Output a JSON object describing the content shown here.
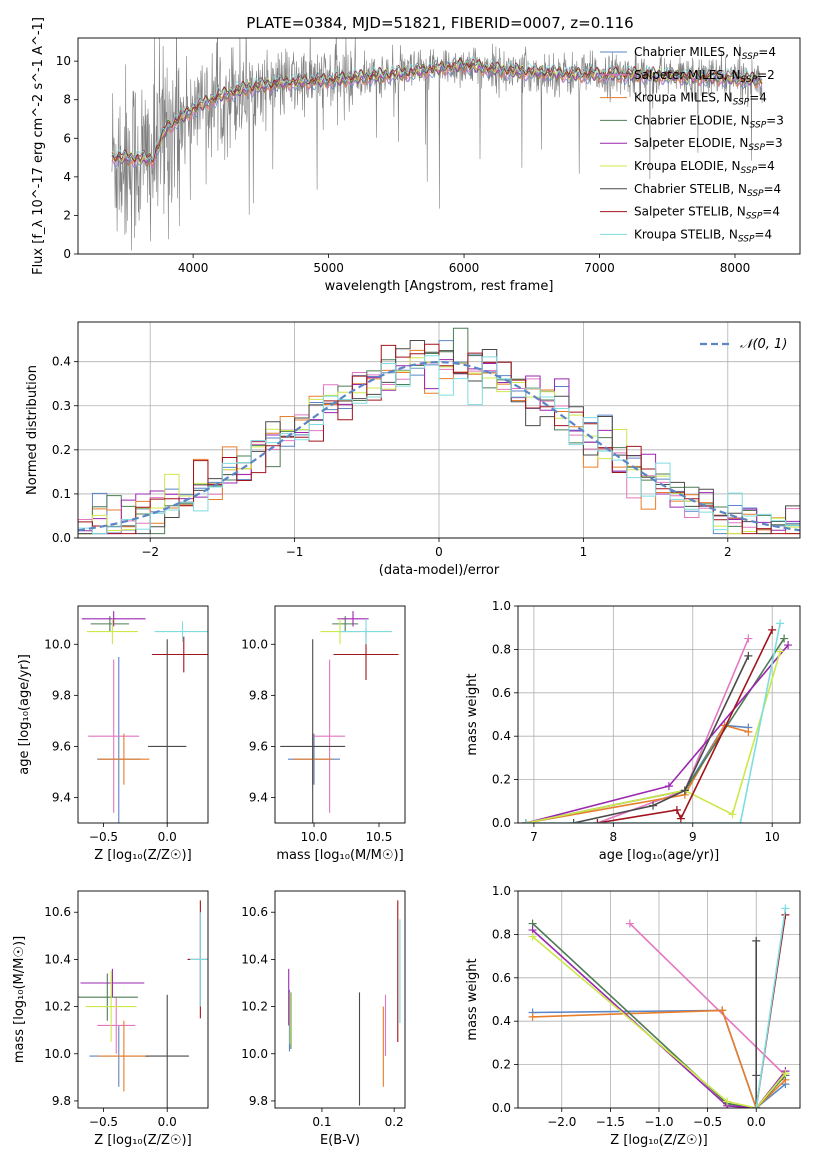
{
  "title": "PLATE=0384, MJD=51821, FIBERID=0007, z=0.116",
  "colors": {
    "Chabrier MILES": "#5b86c6",
    "Salpeter MILES": "#e377c2",
    "Kroupa MILES": "#e87d2a",
    "Chabrier ELODIE": "#4e7d55",
    "Salpeter ELODIE": "#9b27b0",
    "Kroupa ELODIE": "#cde84a",
    "Chabrier STELIB": "#4a4a4a",
    "Salpeter STELIB": "#a0141c",
    "Kroupa STELIB": "#7fdde0"
  },
  "chart_data": [
    {
      "id": "spectrum",
      "type": "line",
      "xlabel": "wavelength [Angstrom, rest frame]",
      "ylabel": "Flux [f_λ 10^-17 erg cm^-2 s^-1 A^-1]",
      "xlim": [
        3150,
        8480
      ],
      "ylim": [
        0,
        11.2
      ],
      "xticks": [
        4000,
        5000,
        6000,
        7000,
        8000
      ],
      "yticks": [
        0,
        2,
        4,
        6,
        8,
        10
      ],
      "legend_position": "top-right",
      "data": {
        "x_range": [
          3400,
          8200
        ],
        "continuum": [
          [
            3400,
            5.0
          ],
          [
            3700,
            4.9
          ],
          [
            3800,
            6.5
          ],
          [
            4000,
            7.5
          ],
          [
            4200,
            8.2
          ],
          [
            4400,
            8.6
          ],
          [
            4700,
            8.9
          ],
          [
            5000,
            9.0
          ],
          [
            5300,
            9.2
          ],
          [
            5600,
            9.4
          ],
          [
            6000,
            9.8
          ],
          [
            6300,
            9.5
          ],
          [
            6600,
            9.4
          ],
          [
            6800,
            9.3
          ],
          [
            7000,
            9.3
          ],
          [
            7300,
            9.3
          ],
          [
            7600,
            9.2
          ],
          [
            8000,
            9.1
          ],
          [
            8200,
            9.0
          ]
        ],
        "observed_color": "#808080"
      },
      "series": [
        {
          "name": "Chabrier MILES",
          "label_parts": [
            "Chabrier MILES, N",
            "SSP",
            "=4"
          ],
          "color": "#5b86c6"
        },
        {
          "name": "Salpeter MILES",
          "label_parts": [
            "Salpeter MILES, N",
            "SSP",
            "=2"
          ],
          "color": "#e377c2"
        },
        {
          "name": "Kroupa MILES",
          "label_parts": [
            "Kroupa MILES, N",
            "SSP",
            "=4"
          ],
          "color": "#e87d2a"
        },
        {
          "name": "Chabrier ELODIE",
          "label_parts": [
            "Chabrier ELODIE, N",
            "SSP",
            "=3"
          ],
          "color": "#4e7d55"
        },
        {
          "name": "Salpeter ELODIE",
          "label_parts": [
            "Salpeter ELODIE, N",
            "SSP",
            "=3"
          ],
          "color": "#9b27b0"
        },
        {
          "name": "Kroupa ELODIE",
          "label_parts": [
            "Kroupa ELODIE, N",
            "SSP",
            "=4"
          ],
          "color": "#cde84a"
        },
        {
          "name": "Chabrier STELIB",
          "label_parts": [
            "Chabrier STELIB, N",
            "SSP",
            "=4"
          ],
          "color": "#4a4a4a"
        },
        {
          "name": "Salpeter STELIB",
          "label_parts": [
            "Salpeter STELIB, N",
            "SSP",
            "=4"
          ],
          "color": "#a0141c"
        },
        {
          "name": "Kroupa STELIB",
          "label_parts": [
            "Kroupa STELIB, N",
            "SSP",
            "=4"
          ],
          "color": "#7fdde0"
        }
      ]
    },
    {
      "id": "residuals",
      "type": "bar",
      "xlabel": "(data-model)/error",
      "ylabel": "Normed distribution",
      "xlim": [
        -2.5,
        2.5
      ],
      "ylim": [
        0,
        0.49
      ],
      "xticks": [
        -2,
        -1,
        0,
        1,
        2
      ],
      "yticks": [
        0.0,
        0.1,
        0.2,
        0.3,
        0.4
      ],
      "grid": true,
      "legend_position": "top-right",
      "legend_label": "𝒩(0, 1)",
      "gaussian_color": "#5b86c6",
      "bins": {
        "start": -2.5,
        "width": 0.1,
        "count": 50
      }
    },
    {
      "id": "age-vs-Z",
      "type": "errorbar",
      "xlabel": "Z [log₁₀(Z/Z☉)]",
      "ylabel": "age  [log₁₀(age/yr)]",
      "xlim": [
        -0.7,
        0.32
      ],
      "ylim": [
        9.3,
        10.15
      ],
      "xticks": [
        -0.5,
        0.0
      ],
      "yticks": [
        9.4,
        9.6,
        9.8,
        10.0
      ],
      "points": [
        {
          "series": "Chabrier MILES",
          "x": -0.38,
          "xerr": 0.17,
          "y": 9.55,
          "yerr": 0.4
        },
        {
          "series": "Salpeter MILES",
          "x": -0.42,
          "xerr": 0.2,
          "y": 9.64,
          "yerr": 0.3
        },
        {
          "series": "Kroupa MILES",
          "x": -0.34,
          "xerr": 0.2,
          "y": 9.55,
          "yerr": 0.1
        },
        {
          "series": "Chabrier ELODIE",
          "x": -0.45,
          "xerr": 0.15,
          "y": 10.08,
          "yerr": 0.03
        },
        {
          "series": "Salpeter ELODIE",
          "x": -0.42,
          "xerr": 0.25,
          "y": 10.1,
          "yerr": 0.03
        },
        {
          "series": "Kroupa ELODIE",
          "x": -0.43,
          "xerr": 0.2,
          "y": 10.05,
          "yerr": 0.05
        },
        {
          "series": "Chabrier STELIB",
          "x": 0.0,
          "xerr": 0.15,
          "y": 9.6,
          "yerr": 0.42
        },
        {
          "series": "Salpeter STELIB",
          "x": 0.13,
          "xerr": 0.25,
          "y": 9.96,
          "yerr": 0.07
        },
        {
          "series": "Kroupa STELIB",
          "x": 0.12,
          "xerr": 0.22,
          "y": 10.05,
          "yerr": 0.04
        }
      ]
    },
    {
      "id": "age-vs-mass",
      "type": "errorbar",
      "xlabel": "mass [log₁₀(M/M☉)]",
      "ylabel": "",
      "xlim": [
        9.7,
        10.7
      ],
      "ylim": [
        9.3,
        10.15
      ],
      "xticks": [
        10.0,
        10.5
      ],
      "yticks": [
        9.4,
        9.6,
        9.8,
        10.0
      ],
      "points": [
        {
          "series": "Chabrier MILES",
          "x": 10.0,
          "xerr": 0.2,
          "y": 9.55,
          "yerr": 0.1
        },
        {
          "series": "Salpeter MILES",
          "x": 10.12,
          "xerr": 0.12,
          "y": 9.64,
          "yerr": 0.3
        },
        {
          "series": "Kroupa MILES",
          "x": 9.99,
          "xerr": 0.15,
          "y": 9.55,
          "yerr": 0.1
        },
        {
          "series": "Chabrier ELODIE",
          "x": 10.24,
          "xerr": 0.1,
          "y": 10.08,
          "yerr": 0.03
        },
        {
          "series": "Salpeter ELODIE",
          "x": 10.3,
          "xerr": 0.12,
          "y": 10.1,
          "yerr": 0.03
        },
        {
          "series": "Kroupa ELODIE",
          "x": 10.2,
          "xerr": 0.15,
          "y": 10.05,
          "yerr": 0.05
        },
        {
          "series": "Chabrier STELIB",
          "x": 9.99,
          "xerr": 0.25,
          "y": 9.6,
          "yerr": 0.42
        },
        {
          "series": "Salpeter STELIB",
          "x": 10.4,
          "xerr": 0.25,
          "y": 9.96,
          "yerr": 0.1
        },
        {
          "series": "Kroupa STELIB",
          "x": 10.4,
          "xerr": 0.2,
          "y": 10.05,
          "yerr": 0.05
        }
      ]
    },
    {
      "id": "weights-vs-age",
      "type": "line",
      "xlabel": "age  [log₁₀(age/yr)]",
      "ylabel": "mass weight",
      "xlim": [
        6.8,
        10.35
      ],
      "ylim": [
        0,
        1.0
      ],
      "xticks": [
        7,
        8,
        9,
        10
      ],
      "yticks": [
        0.0,
        0.2,
        0.4,
        0.6,
        0.8,
        1.0
      ],
      "grid": true,
      "series": [
        {
          "name": "Chabrier MILES",
          "x": [
            6.9,
            8.9,
            9.4,
            9.7
          ],
          "y": [
            0.0,
            0.15,
            0.45,
            0.44
          ]
        },
        {
          "name": "Salpeter MILES",
          "x": [
            7.8,
            8.9,
            9.7
          ],
          "y": [
            0.0,
            0.15,
            0.85
          ]
        },
        {
          "name": "Kroupa MILES",
          "x": [
            6.9,
            8.9,
            9.4,
            9.7
          ],
          "y": [
            0.0,
            0.13,
            0.45,
            0.42
          ]
        },
        {
          "name": "Chabrier ELODIE",
          "x": [
            6.9,
            8.9,
            10.15
          ],
          "y": [
            0.0,
            0.15,
            0.85
          ]
        },
        {
          "name": "Salpeter ELODIE",
          "x": [
            6.9,
            8.7,
            10.2
          ],
          "y": [
            0.0,
            0.17,
            0.82
          ]
        },
        {
          "name": "Kroupa ELODIE",
          "x": [
            6.9,
            8.9,
            9.5,
            10.1
          ],
          "y": [
            0.0,
            0.15,
            0.04,
            0.79
          ]
        },
        {
          "name": "Chabrier STELIB",
          "x": [
            7.5,
            8.5,
            8.9,
            9.7
          ],
          "y": [
            0.0,
            0.08,
            0.15,
            0.77
          ]
        },
        {
          "name": "Salpeter STELIB",
          "x": [
            7.8,
            8.8,
            8.85,
            10.0
          ],
          "y": [
            0.0,
            0.06,
            0.02,
            0.89
          ]
        },
        {
          "name": "Kroupa STELIB",
          "x": [
            6.9,
            9.6,
            10.1
          ],
          "y": [
            0.0,
            0.0,
            0.92
          ]
        }
      ]
    },
    {
      "id": "mass-vs-Z",
      "type": "errorbar",
      "xlabel": "Z [log₁₀(Z/Z☉)]",
      "ylabel": "mass [log₁₀(M/M☉)]",
      "xlim": [
        -0.7,
        0.32
      ],
      "ylim": [
        9.77,
        10.69
      ],
      "xticks": [
        -0.5,
        0.0
      ],
      "yticks": [
        9.8,
        10.0,
        10.2,
        10.4,
        10.6
      ],
      "points": [
        {
          "series": "Chabrier MILES",
          "x": -0.38,
          "xerr": 0.23,
          "y": 9.99,
          "yerr": 0.13
        },
        {
          "series": "Salpeter MILES",
          "x": -0.4,
          "xerr": 0.15,
          "y": 10.12,
          "yerr": 0.12
        },
        {
          "series": "Kroupa MILES",
          "x": -0.34,
          "xerr": 0.2,
          "y": 9.99,
          "yerr": 0.15
        },
        {
          "series": "Chabrier ELODIE",
          "x": -0.47,
          "xerr": 0.24,
          "y": 10.24,
          "yerr": 0.1
        },
        {
          "series": "Salpeter ELODIE",
          "x": -0.43,
          "xerr": 0.25,
          "y": 10.3,
          "yerr": 0.06
        },
        {
          "series": "Kroupa ELODIE",
          "x": -0.44,
          "xerr": 0.2,
          "y": 10.2,
          "yerr": 0.15
        },
        {
          "series": "Chabrier STELIB",
          "x": 0.0,
          "xerr": 0.17,
          "y": 9.99,
          "yerr": 0.26
        },
        {
          "series": "Salpeter STELIB",
          "x": 0.26,
          "xerr": 0.1,
          "y": 10.4,
          "yerr": 0.25
        },
        {
          "series": "Kroupa STELIB",
          "x": 0.26,
          "xerr": 0.08,
          "y": 10.4,
          "yerr": 0.2
        }
      ]
    },
    {
      "id": "mass-vs-ebv",
      "type": "errorbar",
      "xlabel": "E(B-V)",
      "ylabel": "",
      "xlim": [
        0.035,
        0.215
      ],
      "ylim": [
        9.77,
        10.69
      ],
      "xticks": [
        0.1,
        0.2
      ],
      "yticks": [
        9.8,
        10.0,
        10.2,
        10.4,
        10.6
      ],
      "points": [
        {
          "series": "Chabrier MILES",
          "x": 0.055,
          "y": 10.14,
          "yerr": 0.13
        },
        {
          "series": "Salpeter MILES",
          "x": 0.188,
          "y": 10.12,
          "yerr": 0.13
        },
        {
          "series": "Kroupa MILES",
          "x": 0.185,
          "y": 10.03,
          "yerr": 0.17
        },
        {
          "series": "Chabrier ELODIE",
          "x": 0.057,
          "y": 10.14,
          "yerr": 0.12
        },
        {
          "series": "Salpeter ELODIE",
          "x": 0.054,
          "y": 10.24,
          "yerr": 0.12
        },
        {
          "series": "Kroupa ELODIE",
          "x": 0.056,
          "y": 10.15,
          "yerr": 0.11
        },
        {
          "series": "Chabrier STELIB",
          "x": 0.152,
          "y": 10.02,
          "yerr": 0.24
        },
        {
          "series": "Salpeter STELIB",
          "x": 0.205,
          "y": 10.35,
          "yerr": 0.3
        },
        {
          "series": "Kroupa STELIB",
          "x": 0.208,
          "y": 10.35,
          "yerr": 0.22
        }
      ]
    },
    {
      "id": "weights-vs-Z",
      "type": "line",
      "xlabel": "Z [log₁₀(Z/Z☉)]",
      "ylabel": "mass weight",
      "xlim": [
        -2.45,
        0.45
      ],
      "ylim": [
        0,
        1.0
      ],
      "xticks": [
        -2.0,
        -1.5,
        -1.0,
        -0.5,
        0.0
      ],
      "yticks": [
        0.0,
        0.2,
        0.4,
        0.6,
        0.8,
        1.0
      ],
      "grid": true,
      "series": [
        {
          "name": "Chabrier MILES",
          "x": [
            -2.3,
            -0.35,
            0.0,
            0.3
          ],
          "y": [
            0.44,
            0.45,
            0.0,
            0.11
          ]
        },
        {
          "name": "Salpeter MILES",
          "x": [
            -1.3,
            0.3
          ],
          "y": [
            0.85,
            0.15
          ]
        },
        {
          "name": "Kroupa MILES",
          "x": [
            -2.3,
            -0.35,
            0.0,
            0.3
          ],
          "y": [
            0.42,
            0.45,
            0.0,
            0.13
          ]
        },
        {
          "name": "Chabrier ELODIE",
          "x": [
            -2.3,
            -0.3,
            0.0,
            0.3
          ],
          "y": [
            0.85,
            0.02,
            0.0,
            0.15
          ]
        },
        {
          "name": "Salpeter ELODIE",
          "x": [
            -2.3,
            -0.3,
            0.0,
            0.3
          ],
          "y": [
            0.82,
            0.01,
            0.0,
            0.17
          ]
        },
        {
          "name": "Kroupa ELODIE",
          "x": [
            -2.3,
            -0.3,
            0.0,
            0.3
          ],
          "y": [
            0.79,
            0.03,
            0.0,
            0.16
          ]
        },
        {
          "name": "Chabrier STELIB",
          "x": [
            0.0,
            0.0,
            0.0
          ],
          "y": [
            0.0,
            0.77,
            0.15
          ]
        },
        {
          "name": "Salpeter STELIB",
          "x": [
            0.0,
            0.3
          ],
          "y": [
            0.0,
            0.89
          ]
        },
        {
          "name": "Kroupa STELIB",
          "x": [
            0.0,
            0.3
          ],
          "y": [
            0.0,
            0.92
          ]
        }
      ]
    }
  ]
}
